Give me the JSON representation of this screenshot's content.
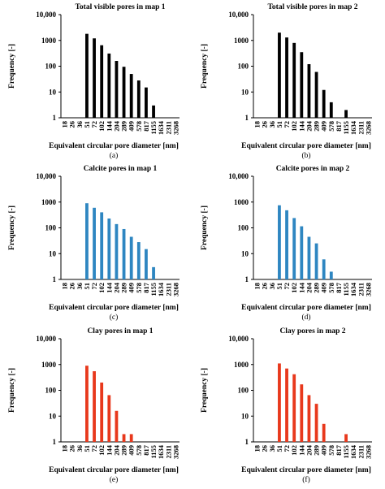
{
  "figure": {
    "panels": [
      {
        "id": "a",
        "caption": "(a)"
      },
      {
        "id": "b",
        "caption": "(b)"
      },
      {
        "id": "c",
        "caption": "(c)"
      },
      {
        "id": "d",
        "caption": "(d)"
      },
      {
        "id": "e",
        "caption": "(e)"
      },
      {
        "id": "f",
        "caption": "(f)"
      }
    ]
  },
  "chart_data": [
    {
      "type": "bar",
      "title": "Total visible pores in map 1",
      "xlabel": "Equivalent circular pore diameter [nm]",
      "ylabel": "Frequency [-]",
      "yscale": "log",
      "ylim": [
        1,
        10000
      ],
      "yticks": [
        "1",
        "10",
        "100",
        "1000",
        "10,000"
      ],
      "categories": [
        "18",
        "26",
        "36",
        "51",
        "72",
        "102",
        "144",
        "204",
        "289",
        "409",
        "578",
        "817",
        "1155",
        "1634",
        "2311",
        "3268"
      ],
      "values": [
        0,
        0,
        0,
        1800,
        1200,
        650,
        310,
        160,
        95,
        50,
        28,
        15,
        3,
        0,
        0,
        0
      ],
      "color": "#000000",
      "grid": false
    },
    {
      "type": "bar",
      "title": "Total visible pores in map 2",
      "xlabel": "Equivalent circular pore diameter [nm]",
      "ylabel": "Frequency [-]",
      "yscale": "log",
      "ylim": [
        1,
        10000
      ],
      "yticks": [
        "1",
        "10",
        "100",
        "1000",
        "10,000"
      ],
      "categories": [
        "18",
        "26",
        "36",
        "51",
        "72",
        "102",
        "144",
        "204",
        "289",
        "409",
        "578",
        "817",
        "1155",
        "1634",
        "2311",
        "3268"
      ],
      "values": [
        0,
        0,
        0,
        2000,
        1300,
        800,
        350,
        120,
        60,
        12,
        4,
        0,
        2,
        0,
        0,
        0
      ],
      "color": "#000000",
      "grid": false
    },
    {
      "type": "bar",
      "title": "Calcite pores in map 1",
      "xlabel": "Equivalent circular pore diameter [nm]",
      "ylabel": "Frequency [-]",
      "yscale": "log",
      "ylim": [
        1,
        10000
      ],
      "yticks": [
        "1",
        "10",
        "100",
        "1000",
        "10,000"
      ],
      "categories": [
        "18",
        "26",
        "36",
        "51",
        "72",
        "102",
        "144",
        "204",
        "289",
        "409",
        "578",
        "817",
        "1155",
        "1634",
        "2311",
        "3268"
      ],
      "values": [
        0,
        0,
        0,
        900,
        600,
        400,
        230,
        140,
        90,
        45,
        28,
        15,
        3,
        0,
        0,
        0
      ],
      "color": "#2e86c1",
      "grid": false
    },
    {
      "type": "bar",
      "title": "Calcite pores in map 2",
      "xlabel": "Equivalent circular pore diameter [nm]",
      "ylabel": "Frequency [-]",
      "yscale": "log",
      "ylim": [
        1,
        10000
      ],
      "yticks": [
        "1",
        "10",
        "100",
        "1000",
        "10,000"
      ],
      "categories": [
        "18",
        "26",
        "36",
        "51",
        "72",
        "102",
        "144",
        "204",
        "289",
        "409",
        "578",
        "817",
        "1155",
        "1634",
        "2311",
        "3268"
      ],
      "values": [
        0,
        0,
        0,
        750,
        480,
        240,
        115,
        45,
        25,
        6,
        2,
        0,
        0,
        0,
        0,
        0
      ],
      "color": "#2e86c1",
      "grid": false
    },
    {
      "type": "bar",
      "title": "Clay pores in map 1",
      "xlabel": "Equivalent circular pore diameter [nm]",
      "ylabel": "Frequency [-]",
      "yscale": "log",
      "ylim": [
        1,
        10000
      ],
      "yticks": [
        "1",
        "10",
        "100",
        "1000",
        "10,000"
      ],
      "categories": [
        "18",
        "26",
        "36",
        "51",
        "72",
        "102",
        "144",
        "204",
        "289",
        "409",
        "578",
        "817",
        "1155",
        "1634",
        "2311",
        "3268"
      ],
      "values": [
        0,
        0,
        0,
        900,
        550,
        200,
        65,
        16,
        2,
        2,
        0,
        0,
        0,
        0,
        0,
        0
      ],
      "color": "#e8381c",
      "grid": false
    },
    {
      "type": "bar",
      "title": "Clay pores in map 2",
      "xlabel": "Equivalent circular pore diameter [nm]",
      "ylabel": "Frequency [-]",
      "yscale": "log",
      "ylim": [
        1,
        10000
      ],
      "yticks": [
        "1",
        "10",
        "100",
        "1000",
        "10,000"
      ],
      "categories": [
        "18",
        "26",
        "36",
        "51",
        "72",
        "102",
        "144",
        "204",
        "289",
        "409",
        "578",
        "817",
        "1155",
        "1634",
        "2311",
        "3268"
      ],
      "values": [
        0,
        0,
        0,
        1100,
        700,
        420,
        170,
        65,
        30,
        5,
        0,
        0,
        2,
        0,
        0,
        0
      ],
      "color": "#e8381c",
      "grid": false
    }
  ]
}
